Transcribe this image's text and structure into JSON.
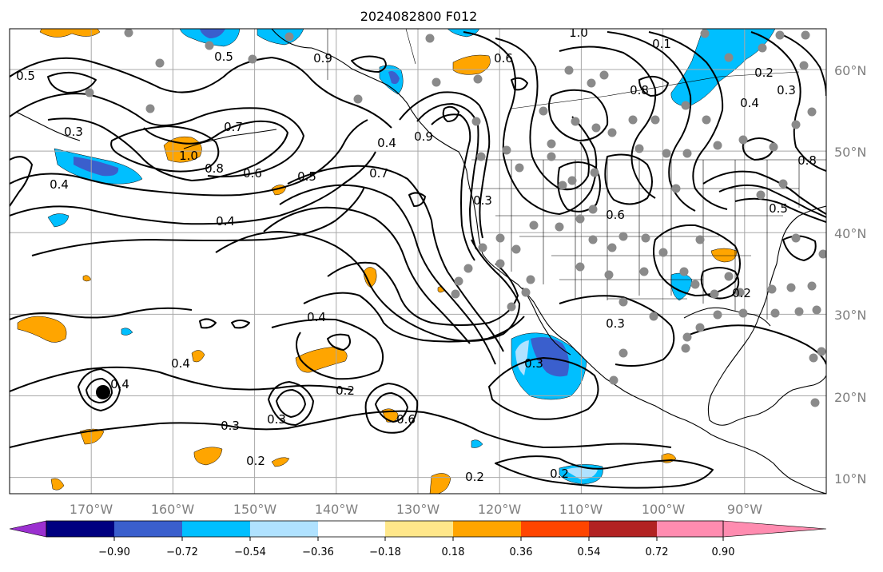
{
  "title": "2024082800 F012",
  "map": {
    "lon_range": [
      -180,
      -80
    ],
    "lat_range": [
      8,
      65
    ],
    "lat_labels": [
      "60°N",
      "50°N",
      "40°N",
      "30°N",
      "20°N",
      "10°N"
    ],
    "lon_labels": [
      "170°W",
      "160°W",
      "150°W",
      "140°W",
      "130°W",
      "120°W",
      "110°W",
      "100°W",
      "90°W"
    ],
    "contour_labels": [
      "1.0",
      "0.5",
      "0.6",
      "0.4",
      "0.3",
      "0.7",
      "0.8",
      "0.9",
      "0.2",
      "0.1",
      "0.4",
      "0.5",
      "0.6",
      "0.7",
      "0.8",
      "1.0",
      "0.3",
      "0.2",
      "0.4",
      "0.3",
      "0.5",
      "0.8",
      "0.9",
      "0.6",
      "0.4",
      "0.3",
      "0.2",
      "0.2",
      "0.3",
      "0.4",
      "0.6",
      "0.2",
      "0.3",
      "0.2",
      "0.3",
      "0.4",
      "0.5",
      "0.4"
    ]
  },
  "colorbar": {
    "colors": [
      "#9b30d0",
      "#000080",
      "#3a5fcd",
      "#00bfff",
      "#b0e2ff",
      "#ffffff",
      "#ffe78a",
      "#ffa500",
      "#ff4500",
      "#b22222",
      "#ff8cb0"
    ],
    "tick_labels": [
      "−0.90",
      "−0.72",
      "−0.54",
      "−0.36",
      "−0.18",
      "0.18",
      "0.36",
      "0.54",
      "0.72",
      "0.90"
    ]
  }
}
